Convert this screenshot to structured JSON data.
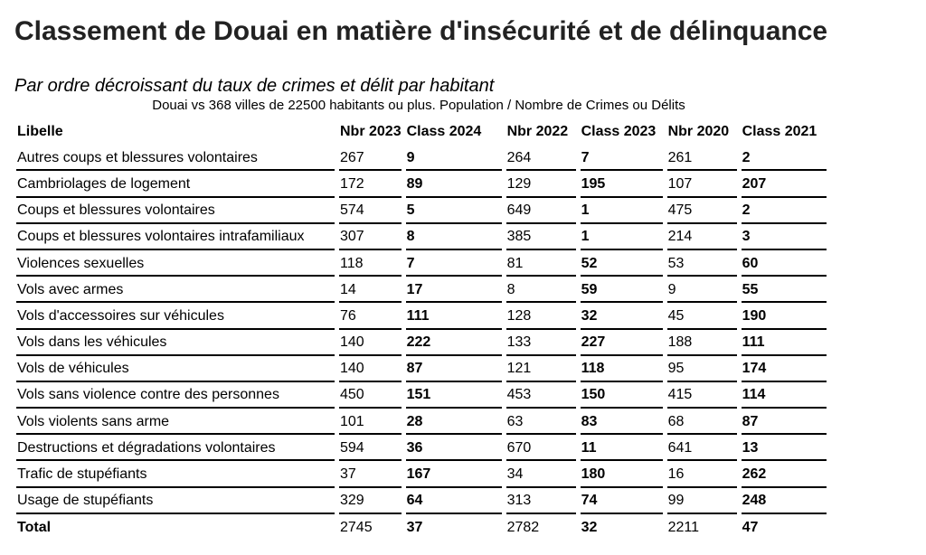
{
  "title": "Classement de Douai en matière d'insécurité et de délinquance",
  "subtitle": "Par ordre décroissant du taux de crimes et délit par habitant",
  "description": "Douai vs 368 villes de 22500 habitants ou plus. Population / Nombre de Crimes ou Délits",
  "table": {
    "headers": [
      "Libelle",
      "Nbr 2023",
      "Class 2024",
      "Nbr 2022",
      "Class 2023",
      "Nbr 2020",
      "Class 2021"
    ],
    "rows": [
      [
        "Autres coups et blessures volontaires",
        "267",
        "9",
        "264",
        "7",
        "261",
        "2"
      ],
      [
        "Cambriolages de logement",
        "172",
        "89",
        "129",
        "195",
        "107",
        "207"
      ],
      [
        "Coups et blessures volontaires",
        "574",
        "5",
        "649",
        "1",
        "475",
        "2"
      ],
      [
        "Coups et blessures volontaires intrafamiliaux",
        "307",
        "8",
        "385",
        "1",
        "214",
        "3"
      ],
      [
        "Violences sexuelles",
        "118",
        "7",
        "81",
        "52",
        "53",
        "60"
      ],
      [
        "Vols avec armes",
        "14",
        "17",
        "8",
        "59",
        "9",
        "55"
      ],
      [
        "Vols d'accessoires sur véhicules",
        "76",
        "111",
        "128",
        "32",
        "45",
        "190"
      ],
      [
        "Vols dans les véhicules",
        "140",
        "222",
        "133",
        "227",
        "188",
        "111"
      ],
      [
        "Vols de véhicules",
        "140",
        "87",
        "121",
        "118",
        "95",
        "174"
      ],
      [
        "Vols sans violence contre des personnes",
        "450",
        "151",
        "453",
        "150",
        "415",
        "114"
      ],
      [
        "Vols violents sans arme",
        "101",
        "28",
        "63",
        "83",
        "68",
        "87"
      ],
      [
        "Destructions et dégradations volontaires",
        "594",
        "36",
        "670",
        "11",
        "641",
        "13"
      ],
      [
        "Trafic de stupéfiants",
        "37",
        "167",
        "34",
        "180",
        "16",
        "262"
      ],
      [
        "Usage de stupéfiants",
        "329",
        "64",
        "313",
        "74",
        "99",
        "248"
      ],
      [
        "Total",
        "2745",
        "37",
        "2782",
        "32",
        "2211",
        "47"
      ]
    ]
  }
}
